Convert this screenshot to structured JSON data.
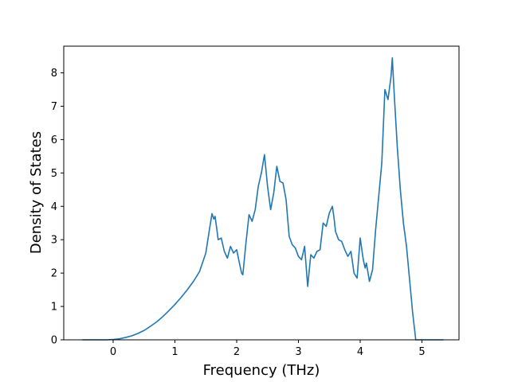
{
  "chart_data": {
    "type": "line",
    "title": "",
    "xlabel": "Frequency (THz)",
    "ylabel": "Density of States",
    "xlim": [
      -0.8,
      5.6
    ],
    "ylim": [
      0,
      8.8
    ],
    "xticks": [
      0,
      1,
      2,
      3,
      4,
      5
    ],
    "yticks": [
      0,
      1,
      2,
      3,
      4,
      5,
      6,
      7,
      8
    ],
    "grid": false,
    "color": "#1f77b4",
    "series": [
      {
        "x": [
          -0.5,
          -0.3,
          -0.1,
          0.0,
          0.1,
          0.2,
          0.3,
          0.4,
          0.5,
          0.6,
          0.7,
          0.8,
          0.9,
          1.0,
          1.1,
          1.2,
          1.3,
          1.4,
          1.5,
          1.55,
          1.6,
          1.63,
          1.65,
          1.68,
          1.7,
          1.75,
          1.8,
          1.85,
          1.9,
          1.95,
          2.0,
          2.05,
          2.08,
          2.1,
          2.15,
          2.2,
          2.25,
          2.3,
          2.35,
          2.4,
          2.45,
          2.5,
          2.55,
          2.6,
          2.65,
          2.7,
          2.75,
          2.8,
          2.85,
          2.9,
          2.95,
          3.0,
          3.05,
          3.1,
          3.15,
          3.2,
          3.25,
          3.3,
          3.35,
          3.4,
          3.45,
          3.5,
          3.55,
          3.58,
          3.6,
          3.65,
          3.7,
          3.75,
          3.8,
          3.85,
          3.9,
          3.95,
          4.0,
          4.05,
          4.08,
          4.1,
          4.15,
          4.2,
          4.25,
          4.3,
          4.35,
          4.4,
          4.45,
          4.5,
          4.52,
          4.55,
          4.6,
          4.65,
          4.7,
          4.75,
          4.8,
          4.85,
          4.9,
          5.0,
          5.35
        ],
        "y": [
          0,
          0,
          0,
          0.01,
          0.03,
          0.07,
          0.12,
          0.19,
          0.28,
          0.4,
          0.53,
          0.69,
          0.87,
          1.06,
          1.27,
          1.5,
          1.75,
          2.05,
          2.6,
          3.2,
          3.78,
          3.62,
          3.7,
          3.3,
          3.0,
          3.05,
          2.65,
          2.45,
          2.8,
          2.6,
          2.7,
          2.25,
          2.0,
          1.95,
          2.9,
          3.75,
          3.55,
          3.9,
          4.6,
          5.0,
          5.55,
          4.6,
          3.9,
          4.4,
          5.2,
          4.75,
          4.7,
          4.2,
          3.1,
          2.85,
          2.75,
          2.5,
          2.4,
          2.8,
          1.6,
          2.55,
          2.45,
          2.65,
          2.7,
          3.5,
          3.4,
          3.8,
          4.0,
          3.6,
          3.25,
          3.0,
          2.95,
          2.7,
          2.5,
          2.65,
          2.0,
          1.85,
          3.05,
          2.4,
          2.15,
          2.3,
          1.75,
          2.1,
          3.3,
          4.3,
          5.3,
          7.5,
          7.2,
          7.9,
          8.45,
          7.4,
          5.8,
          4.5,
          3.5,
          2.8,
          1.8,
          0.8,
          0,
          0,
          0
        ]
      }
    ]
  }
}
